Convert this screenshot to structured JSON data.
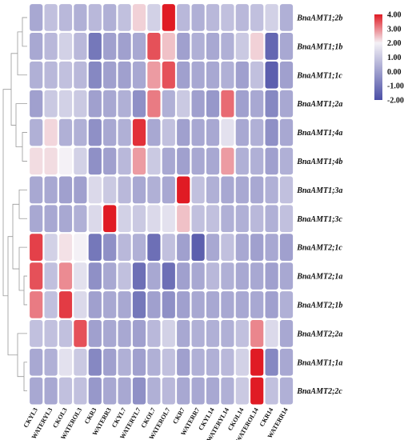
{
  "chart_data": {
    "type": "heatmap",
    "title": "",
    "rows": [
      "BnaAMT1;2b",
      "BnaAMT1;1b",
      "BnaAMT1;1c",
      "BnaAMT1;2a",
      "BnaAMT1;4a",
      "BnaAMT1;4b",
      "BnaAMT1;3a",
      "BnaAMT1;3c",
      "BnaAMT2;1c",
      "BnaAMT2;1a",
      "BnaAMT2;1b",
      "BnaAMT2;2a",
      "BnaAMT1;1a",
      "BnaAMT2;2c"
    ],
    "columns": [
      "CKYL3",
      "WATERYL3",
      "CKOL3",
      "WATEROL3",
      "CKR3",
      "WATERR3",
      "CKYL7",
      "WATERYL7",
      "CKOL7",
      "WATEROL7",
      "CKR7",
      "WATERR7",
      "CKYL14",
      "WATERYL14",
      "CKOL14",
      "WATEROL14",
      "CKR14",
      "WATERR14"
    ],
    "values": [
      [
        -0.9,
        -0.6,
        -0.7,
        -0.8,
        -0.7,
        -0.8,
        -0.6,
        0.6,
        -0.4,
        4.0,
        -0.7,
        -0.8,
        -0.7,
        -0.6,
        -0.7,
        -0.6,
        -0.4,
        -0.8
      ],
      [
        -0.9,
        -0.7,
        -0.4,
        -0.7,
        -1.5,
        -1.0,
        -1.0,
        -0.9,
        3.0,
        0.9,
        -1.0,
        -0.8,
        -0.9,
        -0.8,
        -0.5,
        0.6,
        -1.7,
        -0.9
      ],
      [
        -0.8,
        -0.7,
        -0.6,
        -0.7,
        -1.3,
        -1.0,
        -1.0,
        -0.9,
        1.6,
        3.0,
        -1.0,
        -0.9,
        -0.9,
        -0.8,
        -1.0,
        -0.6,
        -1.8,
        -1.0
      ],
      [
        -1.0,
        -0.5,
        -0.4,
        -0.5,
        -1.0,
        -0.9,
        -0.8,
        -1.2,
        2.2,
        -0.8,
        -0.5,
        -1.0,
        -1.1,
        2.5,
        -1.0,
        -0.9,
        -1.3,
        -0.9
      ],
      [
        -0.8,
        0.5,
        -0.8,
        -0.8,
        -1.2,
        -0.9,
        -0.8,
        3.6,
        -0.9,
        -0.6,
        -1.0,
        -0.9,
        -0.9,
        -0.2,
        -0.9,
        -0.8,
        -1.2,
        -0.9
      ],
      [
        0.4,
        0.4,
        0.0,
        -0.4,
        -1.2,
        -1.0,
        -0.7,
        1.6,
        -0.5,
        -0.9,
        -1.0,
        -0.9,
        -0.9,
        1.6,
        -0.8,
        -0.8,
        -1.0,
        -0.8
      ],
      [
        -0.9,
        -0.9,
        -1.0,
        -1.0,
        -0.3,
        -0.5,
        -0.7,
        -0.9,
        -0.8,
        -0.9,
        4.0,
        -0.6,
        -0.8,
        -0.9,
        -0.9,
        -0.9,
        -0.8,
        -0.6
      ],
      [
        -0.9,
        -0.9,
        -0.9,
        -0.8,
        -0.3,
        4.0,
        -0.4,
        -0.5,
        -0.3,
        -0.2,
        0.9,
        -0.6,
        -0.6,
        -0.8,
        -0.8,
        -0.7,
        -0.8,
        -0.6
      ],
      [
        3.3,
        -0.4,
        0.3,
        0.0,
        -1.5,
        -1.2,
        -0.7,
        -0.8,
        -1.6,
        -0.6,
        -1.0,
        -1.8,
        -0.9,
        -0.6,
        -0.9,
        -1.0,
        -0.9,
        -1.0
      ],
      [
        3.0,
        -0.6,
        1.9,
        -0.2,
        -1.2,
        -0.9,
        -0.6,
        -1.6,
        -0.9,
        -1.6,
        -1.0,
        -0.9,
        -0.7,
        -0.8,
        -0.9,
        -0.9,
        -1.0,
        -0.9
      ],
      [
        2.2,
        -0.6,
        3.4,
        -0.3,
        -1.0,
        -0.9,
        -0.9,
        -1.5,
        -1.0,
        -1.2,
        -1.0,
        -0.9,
        -0.9,
        -0.9,
        -0.9,
        -0.9,
        -1.0,
        -0.8
      ],
      [
        -0.6,
        -0.6,
        -0.6,
        3.0,
        -1.0,
        -0.9,
        -0.9,
        -1.0,
        -0.7,
        -0.4,
        -0.9,
        -0.8,
        -0.8,
        -0.8,
        -0.6,
        2.0,
        -0.3,
        -0.9
      ],
      [
        -0.9,
        -0.8,
        -0.2,
        -0.5,
        -1.3,
        -1.0,
        -0.8,
        -1.0,
        -0.8,
        -0.6,
        -1.0,
        -0.8,
        -0.8,
        -0.7,
        -0.4,
        4.0,
        -1.3,
        -0.9
      ],
      [
        -0.9,
        -0.9,
        -0.6,
        -0.6,
        -1.1,
        -0.9,
        -0.9,
        -1.2,
        -0.8,
        -0.7,
        -0.9,
        -0.9,
        -0.9,
        -0.8,
        -0.5,
        4.0,
        -0.6,
        -0.8
      ]
    ],
    "scale": {
      "min": -2.0,
      "max": 4.0,
      "ticks": [
        "4.00",
        "3.00",
        "2.00",
        "1.00",
        "0.00",
        "-1.00",
        "-2.00"
      ]
    },
    "colors": {
      "low": "#4b4fa6",
      "mid": "#f4f1f6",
      "high": "#e01b24"
    },
    "legend_placement": "top-right"
  }
}
